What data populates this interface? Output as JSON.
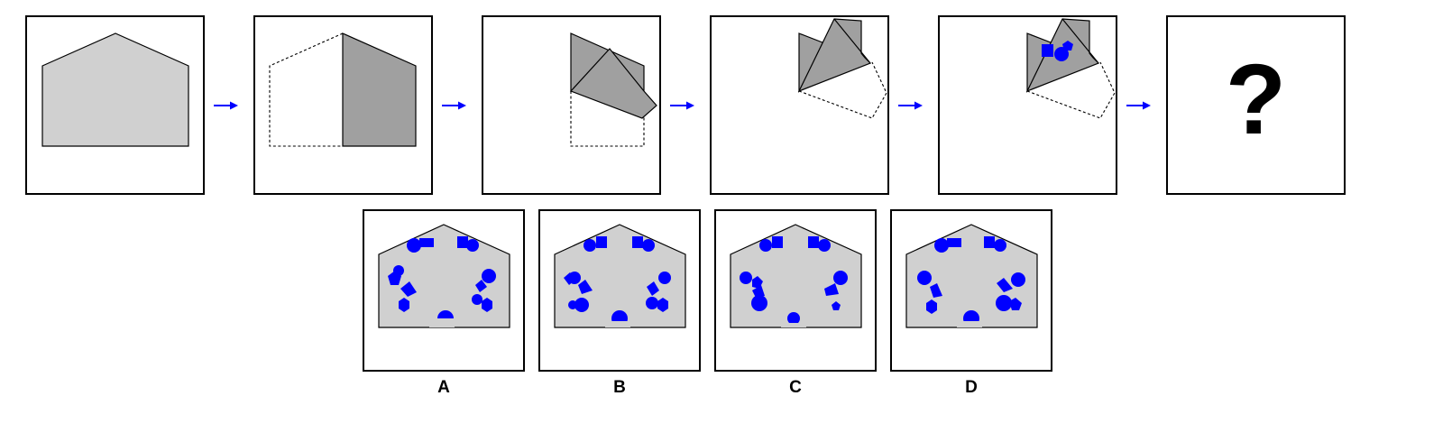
{
  "question_mark": "?",
  "options": [
    {
      "label": "A"
    },
    {
      "label": "B"
    },
    {
      "label": "C"
    },
    {
      "label": "D"
    }
  ],
  "colors": {
    "paper_fill": "#d0d0d0",
    "folded_fill": "#a0a0a0",
    "outline": "#000000",
    "arrow": "#0000ff",
    "hole": "#0000ff"
  },
  "icons": {
    "arrow": "right-arrow-icon",
    "hole_shapes": [
      "circle",
      "square",
      "pentagon",
      "hexagon"
    ]
  }
}
